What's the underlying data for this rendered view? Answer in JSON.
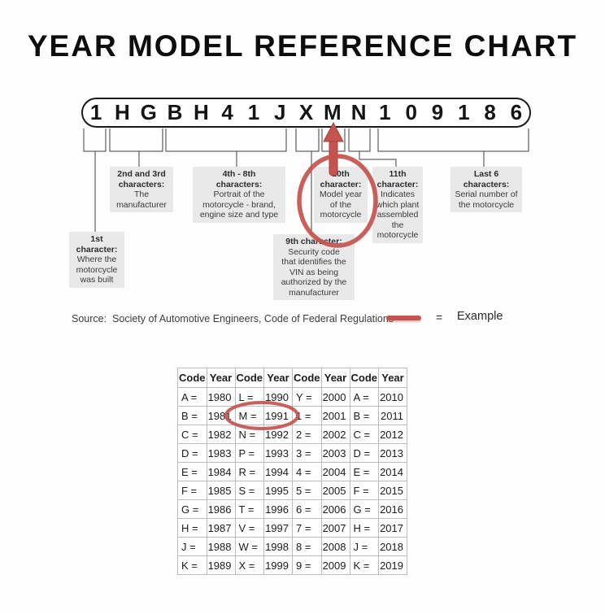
{
  "title": "YEAR MODEL REFERENCE CHART",
  "vin": {
    "characters": [
      "1",
      "H",
      "G",
      "B",
      "H",
      "4",
      "1",
      "J",
      "X",
      "M",
      "N",
      "1",
      "0",
      "9",
      "1",
      "8",
      "6"
    ],
    "highlighted_character": "M"
  },
  "callouts": {
    "first": {
      "heading": [
        "1st",
        "character:"
      ],
      "body": [
        "Where the",
        "motorcycle",
        "was built"
      ]
    },
    "second_third": {
      "heading": [
        "2nd and 3rd",
        "characters:"
      ],
      "body": [
        "The",
        "manufacturer"
      ]
    },
    "fourth_eighth": {
      "heading": [
        "4th - 8th",
        "characters:"
      ],
      "body": [
        "Portrait of the",
        "motorcycle - brand,",
        "engine size and type"
      ]
    },
    "ninth": {
      "heading": [
        "9th character:"
      ],
      "body": [
        "Security code",
        "that identifies the",
        "VIN as being",
        "authorized by the",
        "manufacturer"
      ]
    },
    "tenth": {
      "heading": [
        "10th",
        "character:"
      ],
      "body": [
        "Model year",
        "of the",
        "motorcycle"
      ]
    },
    "eleventh": {
      "heading": [
        "11th",
        "character:"
      ],
      "body": [
        "Indicates",
        "which plant",
        "assembled",
        "the",
        "motorcycle"
      ]
    },
    "last_six": {
      "heading": [
        "Last 6",
        "characters:"
      ],
      "body": [
        "Serial number of",
        "the motorcycle"
      ]
    }
  },
  "source_line": "Source:  Society of Automotive Engineers, Code of Federal Regulations",
  "legend": {
    "equals_sign": "=",
    "label": "Example"
  },
  "colors": {
    "accent_red": "#c5534e",
    "callout_bg": "#e9e9e9",
    "table_border": "#bdbdbd"
  },
  "chart_data": {
    "type": "table",
    "headers": [
      "Code",
      "Year",
      "Code",
      "Year",
      "Code",
      "Year",
      "Code",
      "Year"
    ],
    "rows": [
      [
        "A =",
        "1980",
        "L =",
        "1990",
        "Y =",
        "2000",
        "A =",
        "2010"
      ],
      [
        "B =",
        "1981",
        "M =",
        "1991",
        "1 =",
        "2001",
        "B =",
        "2011"
      ],
      [
        "C =",
        "1982",
        "N =",
        "1992",
        "2 =",
        "2002",
        "C =",
        "2012"
      ],
      [
        "D =",
        "1983",
        "P =",
        "1993",
        "3 =",
        "2003",
        "D =",
        "2013"
      ],
      [
        "E =",
        "1984",
        "R =",
        "1994",
        "4 =",
        "2004",
        "E =",
        "2014"
      ],
      [
        "F =",
        "1985",
        "S =",
        "1995",
        "5 =",
        "2005",
        "F =",
        "2015"
      ],
      [
        "G =",
        "1986",
        "T =",
        "1996",
        "6 =",
        "2006",
        "G =",
        "2016"
      ],
      [
        "H =",
        "1987",
        "V =",
        "1997",
        "7 =",
        "2007",
        "H =",
        "2017"
      ],
      [
        "J =",
        "1988",
        "W =",
        "1998",
        "8 =",
        "2008",
        "J =",
        "2018"
      ],
      [
        "K =",
        "1989",
        "X =",
        "1999",
        "9 =",
        "2009",
        "K =",
        "2019"
      ]
    ],
    "highlighted_cell": {
      "code": "M",
      "year": "1991"
    }
  }
}
